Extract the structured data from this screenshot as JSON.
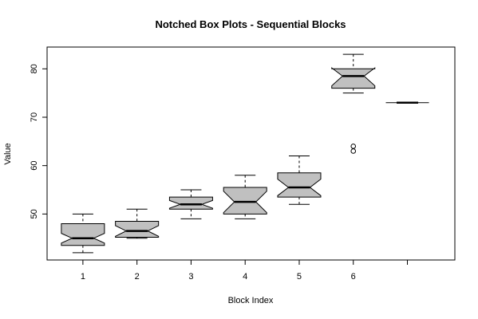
{
  "chart_data": {
    "type": "boxplot",
    "title": "Notched Box Plots - Sequential Blocks",
    "xlabel": "Block Index",
    "ylabel": "Value",
    "ylim": [
      40.5,
      84.5
    ],
    "yticks": [
      50,
      60,
      70,
      80
    ],
    "categories": [
      "1",
      "2",
      "3",
      "4",
      "5",
      "6",
      ""
    ],
    "box_fill": "#c0c0c0",
    "boxes": [
      {
        "whisker_low": 42,
        "q1": 43.5,
        "median": 45,
        "q3": 48,
        "whisker_high": 50,
        "notch_low": 44,
        "notch_high": 46,
        "outliers": []
      },
      {
        "whisker_low": 45,
        "q1": 45.2,
        "median": 46.5,
        "q3": 48.5,
        "whisker_high": 51,
        "notch_low": 45.4,
        "notch_high": 47.6,
        "outliers": []
      },
      {
        "whisker_low": 49,
        "q1": 51,
        "median": 52,
        "q3": 53.5,
        "whisker_high": 55,
        "notch_low": 51.2,
        "notch_high": 52.8,
        "outliers": []
      },
      {
        "whisker_low": 49,
        "q1": 50,
        "median": 52.5,
        "q3": 55.5,
        "whisker_high": 58,
        "notch_low": 50.3,
        "notch_high": 54.7,
        "outliers": []
      },
      {
        "whisker_low": 52,
        "q1": 53.5,
        "median": 55.5,
        "q3": 58.5,
        "whisker_high": 62,
        "notch_low": 53.8,
        "notch_high": 57.2,
        "outliers": []
      },
      {
        "whisker_low": 75,
        "q1": 76,
        "median": 78.5,
        "q3": 80,
        "whisker_high": 83,
        "notch_low": 76.5,
        "notch_high": 80.2,
        "outliers": [
          64,
          63
        ]
      },
      {
        "whisker_low": 73,
        "q1": 73,
        "median": 73,
        "q3": 73,
        "whisker_high": 73,
        "notch_low": 73,
        "notch_high": 73,
        "outliers": []
      }
    ]
  }
}
